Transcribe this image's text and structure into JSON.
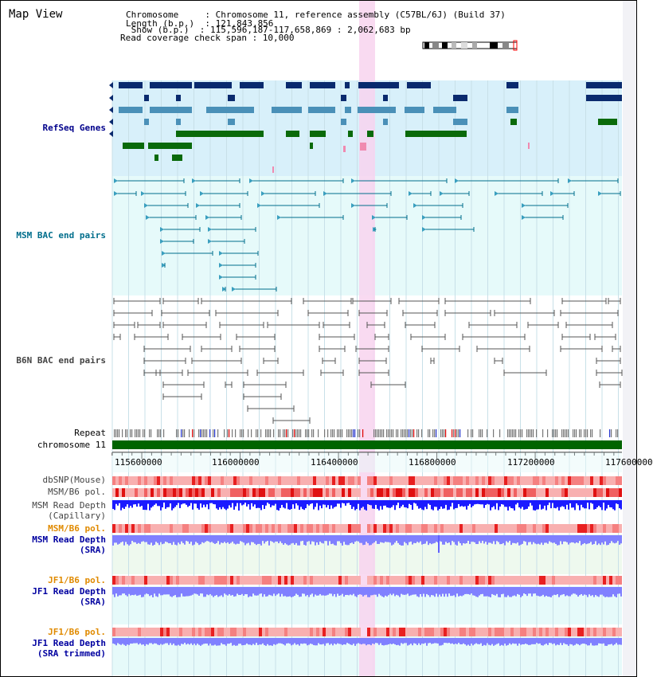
{
  "header": {
    "title": "Map View",
    "info_lines": [
      "Chromosome     : Chromosome 11, reference assembly (C57BL/6J) (Build 37)",
      "Length (b.p.)  : 121,843,856",
      " Show (b.p.)  : 115,596,187-117,658,869 : 2,062,683 bp",
      "Read coverage check span : 10,000"
    ]
  },
  "tracks": {
    "refseq": {
      "label": "RefSeq Genes",
      "color": "#00008b"
    },
    "msm_bac": {
      "label": "MSM BAC end pairs",
      "color": "#006e8c"
    },
    "b6n_bac": {
      "label": "B6N BAC end pairs",
      "color": "#444444"
    },
    "repeat": {
      "label": "Repeat"
    },
    "chromosome": {
      "label": "chromosome 11"
    },
    "dbsnp": {
      "label": "dbSNP(Mouse)"
    },
    "msm_b6_pol1": {
      "label": "MSM/B6 pol."
    },
    "msm_depth_cap": {
      "label": "MSM Read Depth\n(Capillary)"
    },
    "msm_b6_pol2": {
      "label": "MSM/B6 pol.",
      "color": "#e08a00"
    },
    "msm_depth_sra": {
      "label": "MSM Read Depth\n(SRA)",
      "color": "#0000a0"
    },
    "jf1_b6_pol1": {
      "label": "JF1/B6 pol.",
      "color": "#e08a00"
    },
    "jf1_depth_sra": {
      "label": "JF1 Read Depth\n(SRA)",
      "color": "#0000a0"
    },
    "jf1_b6_pol2": {
      "label": "JF1/B6 pol.",
      "color": "#e08a00"
    },
    "jf1_depth_trim": {
      "label": "JF1 Read Depth\n(SRA trimmed)",
      "color": "#0000a0"
    }
  },
  "axis": {
    "ticks": [
      "115600000",
      "116000000",
      "116400000",
      "116800000",
      "117200000",
      "117600000"
    ]
  },
  "colors": {
    "highlight": "#f8d4ee",
    "refseq_bg": "#d8f0fa",
    "bac_bg": "#e6fafa",
    "chromosome_bar": "#006400",
    "depth_capillary": "#1a1aff",
    "depth_sra": "#8080ff",
    "snp": "#ff6666"
  }
}
